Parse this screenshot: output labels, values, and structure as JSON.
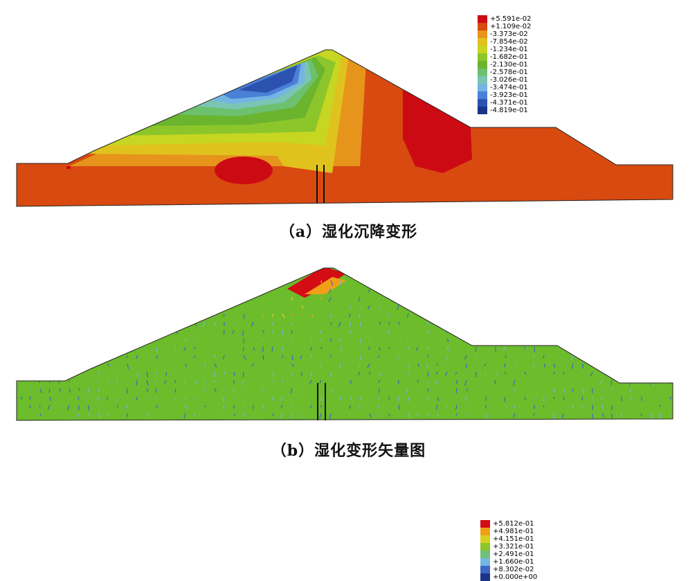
{
  "panel_a": {
    "caption": "（a）湿化沉降变形",
    "legend": [
      {
        "label": "+5.591e-02",
        "color": "#cc0a14"
      },
      {
        "label": "+1.109e-02",
        "color": "#d84a10"
      },
      {
        "label": "-3.373e-02",
        "color": "#e6941c"
      },
      {
        "label": "-7.854e-02",
        "color": "#e0c21e"
      },
      {
        "label": "-1.234e-01",
        "color": "#c6d622"
      },
      {
        "label": "-1.682e-01",
        "color": "#8cc62a"
      },
      {
        "label": "-2.130e-01",
        "color": "#6ab42e"
      },
      {
        "label": "-2.578e-01",
        "color": "#6cc06e"
      },
      {
        "label": "-3.026e-01",
        "color": "#7cc4b4"
      },
      {
        "label": "-3.474e-01",
        "color": "#74b4e4"
      },
      {
        "label": "-3.923e-01",
        "color": "#4a80d6"
      },
      {
        "label": "-4.371e-01",
        "color": "#2c52b0"
      },
      {
        "label": "-4.819e-01",
        "color": "#1c3488"
      }
    ]
  },
  "panel_b": {
    "caption": "（b）湿化变形矢量图",
    "legend": [
      {
        "label": "+5.812e-01",
        "color": "#d40c14"
      },
      {
        "label": "+4.981e-01",
        "color": "#f0a016"
      },
      {
        "label": "+4.151e-01",
        "color": "#d8d020"
      },
      {
        "label": "+3.321e-01",
        "color": "#8cc628"
      },
      {
        "label": "+2.491e-01",
        "color": "#70c07a"
      },
      {
        "label": "+1.660e-01",
        "color": "#74b6e0"
      },
      {
        "label": "+8.302e-02",
        "color": "#3c68c4"
      },
      {
        "label": "+0.000e+00",
        "color": "#1c3488"
      }
    ]
  },
  "colors": {
    "fill_base_a": "#d84a10",
    "fill_base_b": "#6cbc2c",
    "outline": "#222222"
  }
}
